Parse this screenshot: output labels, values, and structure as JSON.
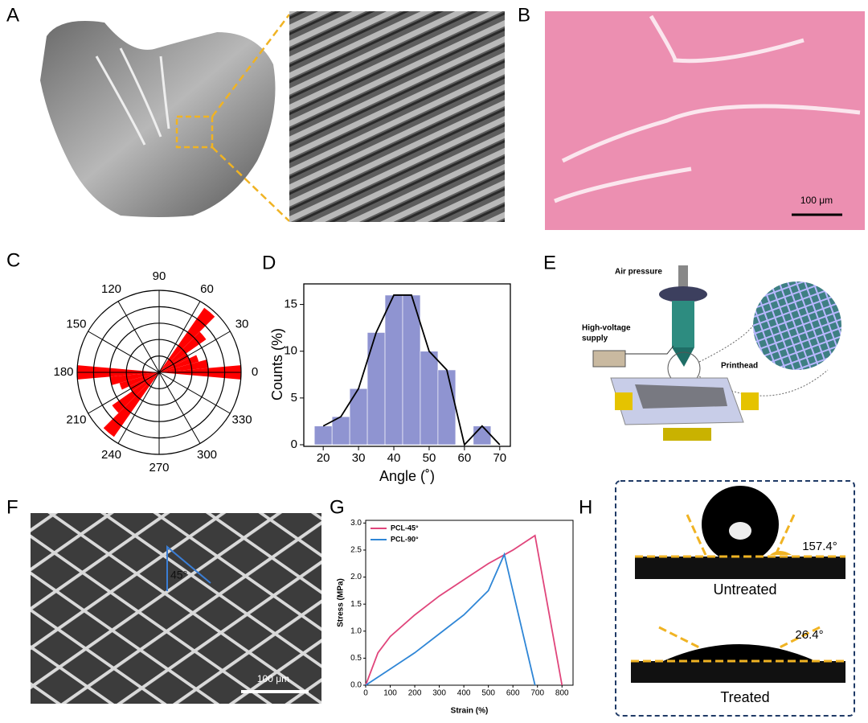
{
  "panel_labels": [
    "A",
    "B",
    "C",
    "D",
    "E",
    "F",
    "G",
    "H"
  ],
  "panel_b": {
    "scale_bar": "100 μm"
  },
  "panel_e": {
    "air_pressure": "Air pressure",
    "high_voltage_supply": [
      "High-voltage",
      "supply"
    ],
    "printhead": "Printhead"
  },
  "panel_f": {
    "angle": "45°",
    "scale_bar": "100 μm"
  },
  "panel_h": {
    "untreated_angle": "157.4°",
    "untreated": "Untreated",
    "treated_angle": "26.4°",
    "treated": "Treated"
  },
  "chart_data": [
    {
      "type": "polar_bar",
      "theta": [
        0,
        10,
        20,
        30,
        40,
        50,
        180,
        190,
        200,
        210,
        220,
        230
      ],
      "values": [
        5,
        3,
        2.5,
        2,
        3.5,
        4.8,
        5,
        3,
        2.5,
        2,
        3.5,
        4.8
      ],
      "color": "#ff0000",
      "thetaticks": [
        0,
        30,
        60,
        90,
        120,
        150,
        180,
        210,
        240,
        270,
        300,
        330
      ],
      "rlim": [
        0,
        5
      ],
      "rticks": [
        1,
        2,
        3,
        4,
        5
      ]
    },
    {
      "type": "histogram",
      "bins": [
        17.5,
        22.5,
        27.5,
        32.5,
        37.5,
        42.5,
        47.5,
        52.5,
        57.5,
        62.5,
        67.5,
        72.5
      ],
      "values": [
        2,
        3,
        6,
        12,
        16,
        16,
        10,
        8,
        0,
        2,
        0
      ],
      "color": "#8f94d1",
      "line_color": "#000000",
      "xlabel": "Angle (˚)",
      "ylabel": "Counts (%)",
      "xlim": [
        14.5,
        73
      ],
      "xticks": [
        20,
        30,
        40,
        50,
        60,
        70
      ],
      "ylim": [
        0,
        17.2
      ],
      "yticks": [
        0,
        5,
        10,
        15
      ]
    },
    {
      "type": "line",
      "xlabel": "Strain (%)",
      "ylabel": "Stress (MPa)",
      "xlim": [
        0,
        845
      ],
      "xticks": [
        0,
        100,
        200,
        300,
        400,
        500,
        600,
        700,
        800
      ],
      "ylim": [
        0,
        3.05
      ],
      "yticks": [
        {
          "value": 0,
          "label": "0.0"
        },
        0.5,
        {
          "value": 1,
          "label": "1.0"
        },
        1.5,
        {
          "value": 2,
          "label": "2.0"
        },
        2.5,
        {
          "value": 3,
          "label": "3.0"
        }
      ],
      "legend": "upper left",
      "series": [
        {
          "name": "PCL-45°",
          "color": "#e0457b",
          "x": [
            0,
            50,
            100,
            200,
            300,
            400,
            500,
            600,
            690,
            800
          ],
          "values": [
            0,
            0.6,
            0.9,
            1.3,
            1.65,
            1.95,
            2.25,
            2.5,
            2.77,
            0
          ]
        },
        {
          "name": "PCL-90°",
          "color": "#2f86d6",
          "x": [
            0,
            100,
            200,
            300,
            400,
            500,
            565,
            690
          ],
          "values": [
            0,
            0.3,
            0.6,
            0.95,
            1.3,
            1.75,
            2.42,
            0
          ]
        }
      ]
    }
  ]
}
